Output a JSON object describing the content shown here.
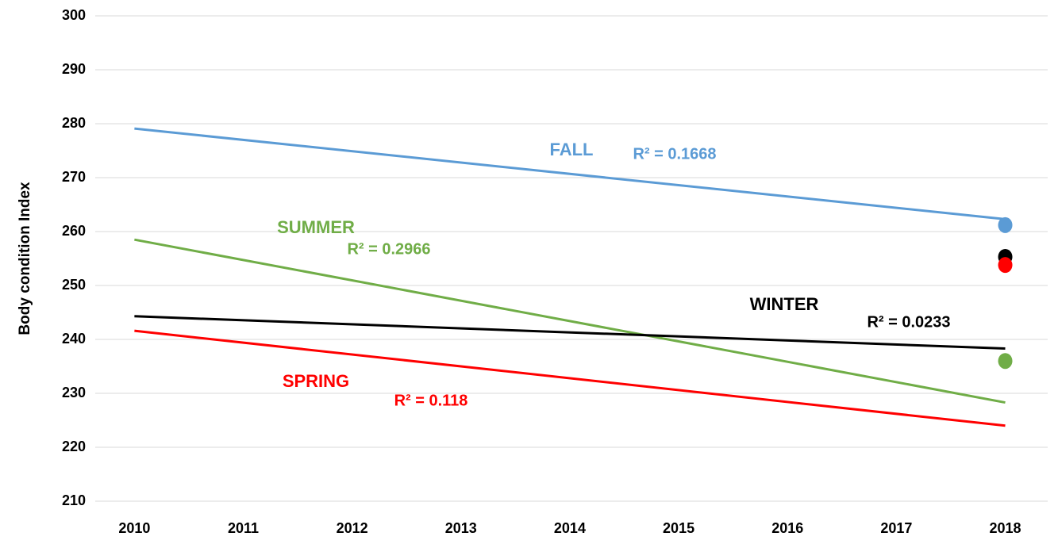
{
  "chart_data": {
    "type": "line",
    "y_label": "Body condition Index",
    "xlim": [
      2009.64,
      2018.39
    ],
    "xticks": [
      2010,
      2011,
      2012,
      2013,
      2014,
      2015,
      2016,
      2017,
      2018
    ],
    "ylim": [
      210,
      300
    ],
    "yticks": [
      210,
      220,
      230,
      240,
      250,
      260,
      270,
      280,
      290,
      300
    ],
    "grid": true,
    "series": [
      {
        "name": "FALL",
        "color": "#5b9bd5",
        "x": [
          2010,
          2018
        ],
        "values": [
          279.1,
          262.3
        ],
        "r2_label": "R² = 0.1668",
        "point": {
          "x": 2018,
          "value": 261.2
        }
      },
      {
        "name": "SUMMER",
        "color": "#70ad47",
        "x": [
          2010,
          2018
        ],
        "values": [
          258.5,
          228.3
        ],
        "r2_label": "R² = 0.2966",
        "point": {
          "x": 2018,
          "value": 236
        }
      },
      {
        "name": "WINTER",
        "color": "#000000",
        "x": [
          2010,
          2018
        ],
        "values": [
          244.3,
          238.3
        ],
        "r2_label": "R² = 0.0233",
        "point": {
          "x": 2018,
          "value": 255.3
        }
      },
      {
        "name": "SPRING",
        "color": "#ff0000",
        "x": [
          2010,
          2018
        ],
        "values": [
          241.6,
          224.0
        ],
        "r2_label": "R² = 0.118",
        "point": {
          "x": 2018,
          "value": 253.8
        }
      }
    ]
  }
}
